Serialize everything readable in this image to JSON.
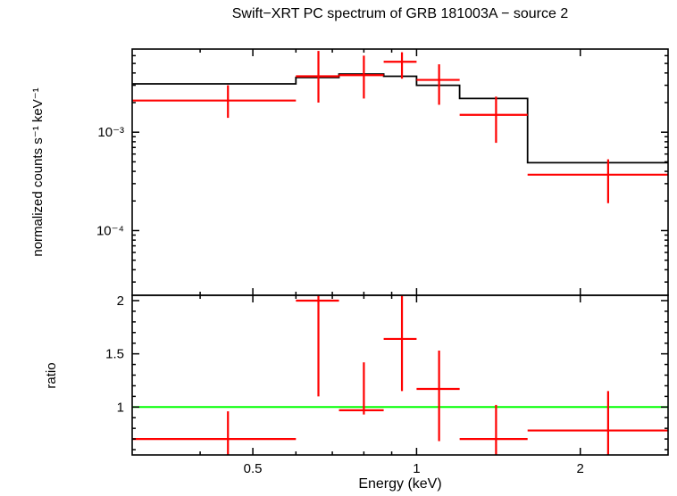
{
  "title": "Swift−XRT PC spectrum of GRB 181003A − source 2",
  "xlabel": "Energy (keV)",
  "colors": {
    "data": "#ff0000",
    "model": "#000000",
    "reference_line": "#00ff00",
    "axes": "#000000",
    "background": "#ffffff"
  },
  "x_axis": {
    "scale": "log",
    "min": 0.3,
    "max": 2.9,
    "major_ticks": [
      {
        "value": 0.5,
        "label": "0.5"
      },
      {
        "value": 1,
        "label": "1"
      },
      {
        "value": 2,
        "label": "2"
      }
    ],
    "minor_ticks": [
      0.4,
      0.6,
      0.7,
      0.8,
      0.9
    ]
  },
  "chart_data": [
    {
      "type": "scatter",
      "name": "spectrum",
      "ylabel": "normalized counts s⁻¹ keV⁻¹",
      "yscale": "log",
      "ylim": [
        2.2e-05,
        0.007
      ],
      "ytick_labels": [
        {
          "value": 0.001,
          "label": "10⁻³"
        },
        {
          "value": 0.0001,
          "label": "10⁻⁴"
        }
      ],
      "series": [
        {
          "name": "model",
          "style": "step",
          "color": "#000000",
          "bins": [
            {
              "xlo": 0.3,
              "xhi": 0.6,
              "y": 0.0031
            },
            {
              "xlo": 0.6,
              "xhi": 0.72,
              "y": 0.0036
            },
            {
              "xlo": 0.72,
              "xhi": 0.87,
              "y": 0.0039
            },
            {
              "xlo": 0.87,
              "xhi": 1.0,
              "y": 0.0037
            },
            {
              "xlo": 1.0,
              "xhi": 1.2,
              "y": 0.003
            },
            {
              "xlo": 1.2,
              "xhi": 1.6,
              "y": 0.0022
            },
            {
              "xlo": 1.6,
              "xhi": 2.9,
              "y": 0.00049
            }
          ]
        },
        {
          "name": "data",
          "style": "cross-error",
          "color": "#ff0000",
          "points": [
            {
              "x": 0.45,
              "xlo": 0.3,
              "xhi": 0.6,
              "y": 0.0021,
              "ylo": 0.0014,
              "yhi": 0.003
            },
            {
              "x": 0.66,
              "xlo": 0.6,
              "xhi": 0.72,
              "y": 0.0037,
              "ylo": 0.002,
              "yhi": 0.0067
            },
            {
              "x": 0.8,
              "xlo": 0.72,
              "xhi": 0.87,
              "y": 0.0038,
              "ylo": 0.0022,
              "yhi": 0.006
            },
            {
              "x": 0.94,
              "xlo": 0.87,
              "xhi": 1.0,
              "y": 0.0052,
              "ylo": 0.0035,
              "yhi": 0.0065
            },
            {
              "x": 1.1,
              "xlo": 1.0,
              "xhi": 1.2,
              "y": 0.0034,
              "ylo": 0.0019,
              "yhi": 0.0049
            },
            {
              "x": 1.4,
              "xlo": 1.2,
              "xhi": 1.6,
              "y": 0.0015,
              "ylo": 0.00078,
              "yhi": 0.0023
            },
            {
              "x": 2.25,
              "xlo": 1.6,
              "xhi": 2.9,
              "y": 0.00037,
              "ylo": 0.00019,
              "yhi": 0.00053
            }
          ]
        }
      ]
    },
    {
      "type": "scatter",
      "name": "ratio",
      "ylabel": "ratio",
      "yscale": "linear",
      "ylim": [
        0.55,
        2.05
      ],
      "ytick_labels": [
        {
          "value": 1,
          "label": "1"
        },
        {
          "value": 1.5,
          "label": "1.5"
        },
        {
          "value": 2,
          "label": "2"
        }
      ],
      "reference_line": {
        "y": 1,
        "color": "#00ff00"
      },
      "series": [
        {
          "name": "data",
          "style": "cross-error",
          "color": "#ff0000",
          "points": [
            {
              "x": 0.45,
              "xlo": 0.3,
              "xhi": 0.6,
              "y": 0.7,
              "ylo": 0.55,
              "yhi": 0.96
            },
            {
              "x": 0.66,
              "xlo": 0.6,
              "xhi": 0.72,
              "y": 2.0,
              "ylo": 1.1,
              "yhi": 2.05
            },
            {
              "x": 0.8,
              "xlo": 0.72,
              "xhi": 0.87,
              "y": 0.97,
              "ylo": 0.93,
              "yhi": 1.42
            },
            {
              "x": 0.94,
              "xlo": 0.87,
              "xhi": 1.0,
              "y": 1.64,
              "ylo": 1.15,
              "yhi": 2.05
            },
            {
              "x": 1.1,
              "xlo": 1.0,
              "xhi": 1.2,
              "y": 1.17,
              "ylo": 0.68,
              "yhi": 1.53
            },
            {
              "x": 1.4,
              "xlo": 1.2,
              "xhi": 1.6,
              "y": 0.7,
              "ylo": 0.55,
              "yhi": 1.02
            },
            {
              "x": 2.25,
              "xlo": 1.6,
              "xhi": 2.9,
              "y": 0.78,
              "ylo": 0.55,
              "yhi": 1.15
            }
          ]
        }
      ]
    }
  ]
}
